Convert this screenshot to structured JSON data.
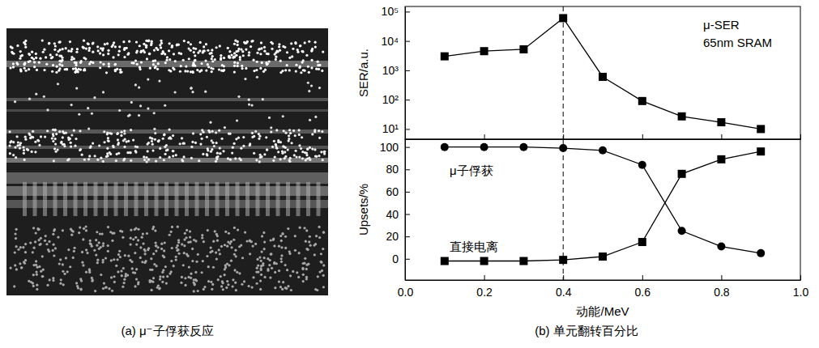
{
  "figure": {
    "captions": [
      "(a) μ⁻子俘获反应",
      "(b) 单元翻转百分比"
    ]
  },
  "chart_data": [
    {
      "type": "line",
      "y_label": "SER/a.u.",
      "annotation": [
        "μ-SER",
        "65nm SRAM"
      ],
      "x": [
        0.1,
        0.2,
        0.3,
        0.4,
        0.5,
        0.6,
        0.7,
        0.8,
        0.9
      ],
      "values": [
        3000,
        4500,
        5200,
        60000,
        600,
        90,
        27,
        17,
        10
      ],
      "color": "#000000",
      "marker": "square",
      "line_style": "solid",
      "log": "y",
      "xlim": [
        0,
        1
      ],
      "xticks": [
        {
          "value": 0,
          "label": "0.0"
        },
        0.2,
        0.4,
        0.6,
        0.8,
        {
          "value": 1,
          "label": "1.0"
        }
      ],
      "ylim": [
        4.5,
        150000
      ],
      "yticks": [
        {
          "value": 10,
          "label": "10¹"
        },
        {
          "value": 100,
          "label": "10²"
        },
        {
          "value": 1000,
          "label": "10³"
        },
        {
          "value": 10000,
          "label": "10⁴"
        },
        {
          "value": 100000,
          "label": "10⁵"
        }
      ],
      "vline_x": 0.4,
      "tick_labels": "y"
    },
    {
      "type": "line",
      "x_label": "动能/MeV",
      "y_label": "Upsets/%",
      "x": [
        0.1,
        0.2,
        0.3,
        0.4,
        0.5,
        0.6,
        0.7,
        0.8,
        0.9
      ],
      "series": [
        {
          "name": "μ子俘获",
          "color": "#000000",
          "marker": "circle",
          "line_style": "solid",
          "values": [
            100,
            100,
            100,
            99,
            97,
            84,
            25,
            11,
            5
          ]
        },
        {
          "name": "直接电离",
          "color": "#000000",
          "marker": "square",
          "line_style": "solid",
          "values": [
            -2,
            -2,
            -2,
            -1,
            2,
            15,
            76,
            89,
            96
          ]
        }
      ],
      "xlim": [
        0,
        1
      ],
      "xticks": [
        {
          "value": 0,
          "label": "0.0"
        },
        0.2,
        0.4,
        0.6,
        0.8,
        {
          "value": 1,
          "label": "1.0"
        }
      ],
      "ylim": [
        -19,
        107
      ],
      "yticks": [
        0,
        20,
        40,
        60,
        80,
        100
      ],
      "vline_x": 0.4
    }
  ]
}
